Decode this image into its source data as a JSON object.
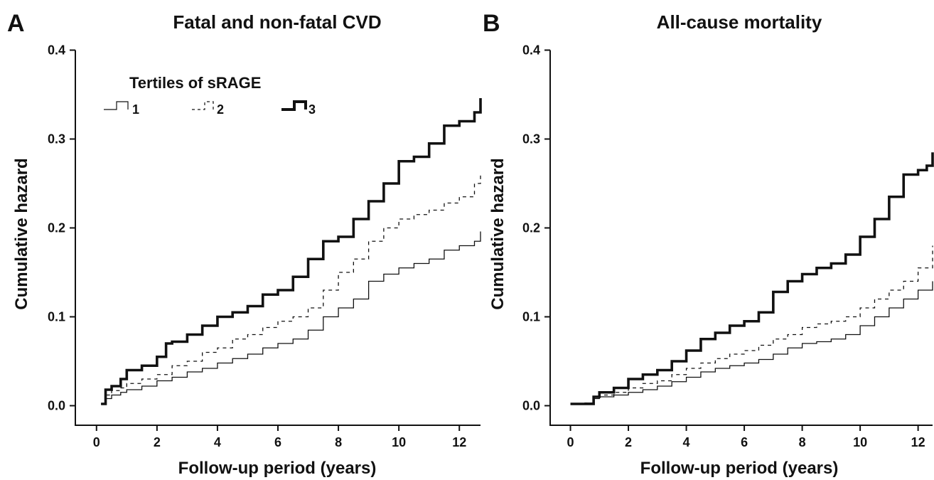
{
  "chart_data": [
    {
      "panel": "A",
      "type": "line",
      "title": "Fatal and non-fatal CVD",
      "xlabel": "Follow-up period (years)",
      "ylabel": "Cumulative hazard",
      "xlim": [
        -0.7,
        12.7
      ],
      "ylim": [
        -0.022,
        0.41
      ],
      "xticks": [
        0,
        2,
        4,
        6,
        8,
        10,
        12
      ],
      "yticks": [
        0.0,
        0.1,
        0.2,
        0.3,
        0.4
      ],
      "ytick_labels": [
        "0.0",
        "0.1",
        "0.2",
        "0.3",
        "0.4"
      ],
      "legend": {
        "title": "Tertiles of sRAGE",
        "position": "top-left"
      },
      "series": [
        {
          "name": "1",
          "style": "thin-solid",
          "x": [
            0.15,
            0.3,
            0.5,
            0.8,
            1.0,
            1.5,
            2.0,
            2.5,
            3.0,
            3.5,
            4.0,
            4.5,
            5.0,
            5.5,
            6.0,
            6.5,
            7.0,
            7.5,
            8.0,
            8.5,
            9.0,
            9.5,
            10.0,
            10.5,
            11.0,
            11.5,
            12.0,
            12.5,
            12.7
          ],
          "values": [
            0.002,
            0.008,
            0.012,
            0.015,
            0.018,
            0.022,
            0.028,
            0.032,
            0.038,
            0.042,
            0.048,
            0.053,
            0.058,
            0.065,
            0.07,
            0.075,
            0.085,
            0.1,
            0.11,
            0.12,
            0.14,
            0.148,
            0.155,
            0.16,
            0.165,
            0.175,
            0.18,
            0.185,
            0.196
          ]
        },
        {
          "name": "2",
          "style": "dashed",
          "x": [
            0.15,
            0.3,
            0.5,
            0.8,
            1.0,
            1.5,
            2.0,
            2.5,
            3.0,
            3.5,
            4.0,
            4.5,
            5.0,
            5.5,
            6.0,
            6.5,
            7.0,
            7.5,
            8.0,
            8.5,
            9.0,
            9.5,
            10.0,
            10.5,
            11.0,
            11.5,
            12.0,
            12.5,
            12.7
          ],
          "values": [
            0.002,
            0.012,
            0.017,
            0.02,
            0.025,
            0.03,
            0.035,
            0.045,
            0.05,
            0.06,
            0.065,
            0.075,
            0.08,
            0.088,
            0.095,
            0.1,
            0.11,
            0.13,
            0.15,
            0.165,
            0.185,
            0.2,
            0.21,
            0.215,
            0.22,
            0.228,
            0.235,
            0.25,
            0.26
          ]
        },
        {
          "name": "3",
          "style": "thick-solid",
          "x": [
            0.15,
            0.3,
            0.5,
            0.8,
            1.0,
            1.5,
            2.0,
            2.3,
            2.5,
            3.0,
            3.5,
            4.0,
            4.5,
            5.0,
            5.5,
            6.0,
            6.5,
            7.0,
            7.5,
            8.0,
            8.5,
            9.0,
            9.5,
            10.0,
            10.5,
            11.0,
            11.5,
            12.0,
            12.5,
            12.7
          ],
          "values": [
            0.002,
            0.018,
            0.022,
            0.03,
            0.04,
            0.045,
            0.055,
            0.07,
            0.072,
            0.08,
            0.09,
            0.1,
            0.105,
            0.112,
            0.125,
            0.13,
            0.145,
            0.165,
            0.185,
            0.19,
            0.21,
            0.23,
            0.25,
            0.275,
            0.28,
            0.295,
            0.315,
            0.32,
            0.33,
            0.346
          ]
        }
      ]
    },
    {
      "panel": "B",
      "type": "line",
      "title": "All-cause mortality",
      "xlabel": "Follow-up period (years)",
      "ylabel": "Cumulative hazard",
      "xlim": [
        -0.7,
        12.5
      ],
      "ylim": [
        -0.022,
        0.41
      ],
      "xticks": [
        0,
        2,
        4,
        6,
        8,
        10,
        12
      ],
      "yticks": [
        0.0,
        0.1,
        0.2,
        0.3,
        0.4
      ],
      "ytick_labels": [
        "0.0",
        "0.1",
        "0.2",
        "0.3",
        "0.4"
      ],
      "series": [
        {
          "name": "1",
          "style": "thin-solid",
          "x": [
            0,
            0.5,
            0.8,
            1.0,
            1.5,
            2.0,
            2.5,
            3.0,
            3.5,
            4.0,
            4.5,
            5.0,
            5.5,
            6.0,
            6.5,
            7.0,
            7.5,
            8.0,
            8.5,
            9.0,
            9.5,
            10.0,
            10.5,
            11.0,
            11.5,
            12.0,
            12.5
          ],
          "values": [
            0.002,
            0.003,
            0.008,
            0.01,
            0.012,
            0.015,
            0.018,
            0.022,
            0.027,
            0.032,
            0.038,
            0.042,
            0.045,
            0.048,
            0.052,
            0.058,
            0.065,
            0.07,
            0.072,
            0.075,
            0.08,
            0.09,
            0.1,
            0.11,
            0.12,
            0.13,
            0.14
          ]
        },
        {
          "name": "2",
          "style": "dashed",
          "x": [
            0,
            0.5,
            0.8,
            1.0,
            1.5,
            2.0,
            2.5,
            3.0,
            3.5,
            4.0,
            4.5,
            5.0,
            5.5,
            6.0,
            6.5,
            7.0,
            7.5,
            8.0,
            8.5,
            9.0,
            9.5,
            10.0,
            10.5,
            11.0,
            11.5,
            12.0,
            12.5
          ],
          "values": [
            0.002,
            0.003,
            0.01,
            0.012,
            0.015,
            0.02,
            0.025,
            0.028,
            0.035,
            0.042,
            0.048,
            0.053,
            0.058,
            0.062,
            0.068,
            0.075,
            0.08,
            0.088,
            0.092,
            0.095,
            0.1,
            0.11,
            0.12,
            0.13,
            0.14,
            0.155,
            0.18
          ]
        },
        {
          "name": "3",
          "style": "thick-solid",
          "x": [
            0,
            0.5,
            0.8,
            1.0,
            1.5,
            2.0,
            2.5,
            3.0,
            3.5,
            4.0,
            4.5,
            5.0,
            5.5,
            6.0,
            6.5,
            7.0,
            7.5,
            8.0,
            8.5,
            9.0,
            9.5,
            10.0,
            10.5,
            11.0,
            11.5,
            12.0,
            12.3,
            12.5
          ],
          "values": [
            0.002,
            0.002,
            0.01,
            0.015,
            0.02,
            0.03,
            0.035,
            0.04,
            0.05,
            0.062,
            0.075,
            0.082,
            0.09,
            0.095,
            0.105,
            0.128,
            0.14,
            0.148,
            0.155,
            0.16,
            0.17,
            0.19,
            0.21,
            0.235,
            0.26,
            0.265,
            0.27,
            0.285
          ]
        }
      ]
    }
  ]
}
